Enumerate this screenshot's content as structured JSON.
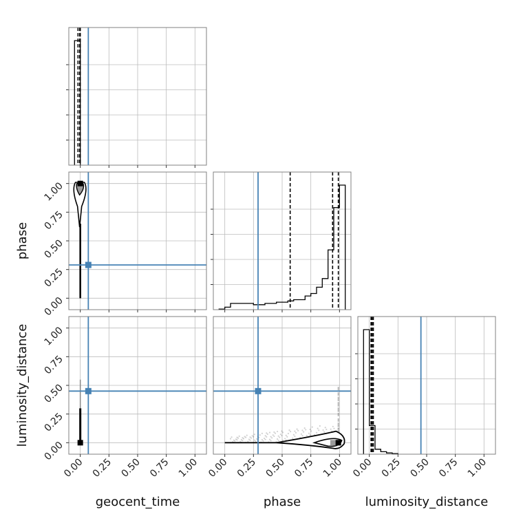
{
  "chart_data": {
    "type": "corner",
    "parameters": [
      "geocent_time",
      "phase",
      "luminosity_distance"
    ],
    "axis_range": [
      -0.1,
      1.1
    ],
    "tick_labels": [
      "0.00",
      "0.25",
      "0.50",
      "0.75",
      "1.00"
    ],
    "grid": true,
    "colors": {
      "truth": "#4682b4",
      "hist": "#000000",
      "frame": "#808080",
      "grid": "#bcbcbc"
    },
    "truths": {
      "geocent_time": 0.07,
      "phase": 0.29,
      "luminosity_distance": 0.45
    },
    "quantiles": {
      "geocent_time": [
        -0.02,
        -0.005,
        0.0
      ],
      "phase": [
        0.57,
        0.94,
        0.99
      ],
      "luminosity_distance": [
        0.015,
        0.025,
        0.035
      ]
    },
    "histograms": {
      "geocent_time": {
        "edges": [
          -0.05,
          0.0
        ],
        "values": [
          1.0
        ]
      },
      "phase": {
        "edges": [
          -0.05,
          0.0,
          0.05,
          0.1,
          0.15,
          0.2,
          0.25,
          0.3,
          0.35,
          0.4,
          0.45,
          0.5,
          0.55,
          0.6,
          0.65,
          0.7,
          0.75,
          0.8,
          0.85,
          0.9,
          0.95,
          1.0,
          1.05
        ],
        "values": [
          0.005,
          0.02,
          0.05,
          0.05,
          0.05,
          0.05,
          0.04,
          0.04,
          0.05,
          0.05,
          0.06,
          0.06,
          0.07,
          0.08,
          0.08,
          0.11,
          0.13,
          0.18,
          0.25,
          0.48,
          0.82,
          1.0
        ]
      },
      "luminosity_distance": {
        "edges": [
          -0.05,
          0.0,
          0.05,
          0.1,
          0.15,
          0.2,
          0.25
        ],
        "values": [
          1.0,
          0.23,
          0.04,
          0.02,
          0.01,
          0.005
        ]
      }
    }
  }
}
